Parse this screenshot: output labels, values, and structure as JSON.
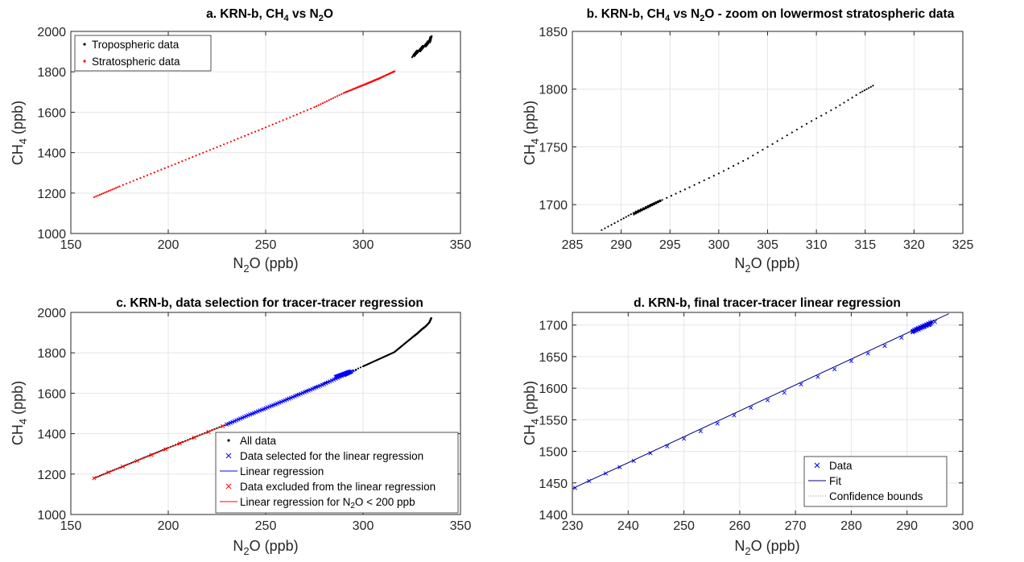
{
  "figure_title": "",
  "chart_data": [
    {
      "id": "a",
      "type": "scatter",
      "title": "a. KRN-b, CH4 vs N2O",
      "xlabel": "N2O (ppb)",
      "ylabel": "CH4 (ppb)",
      "xlim": [
        150,
        350
      ],
      "ylim": [
        1000,
        2000
      ],
      "xticks": [
        150,
        200,
        250,
        300,
        350
      ],
      "yticks": [
        1000,
        1200,
        1400,
        1600,
        1800,
        2000
      ],
      "grid": true,
      "legend_position": "top-left",
      "series": [
        {
          "name": "Tropospheric data",
          "marker": "dot",
          "color": "#000000",
          "kind": "trop",
          "x": [
            325.5,
            327,
            328.5,
            330,
            331.5,
            333,
            334,
            334.5,
            335
          ],
          "y": [
            1878,
            1892,
            1903,
            1915,
            1928,
            1940,
            1950,
            1960,
            1972
          ]
        },
        {
          "name": "Stratospheric data",
          "marker": "dot",
          "color": "#ff0000",
          "kind": "strat",
          "x": [
            162,
            175,
            200,
            225,
            250,
            275,
            290,
            300,
            308,
            316
          ],
          "y": [
            1180,
            1233,
            1330,
            1427,
            1525,
            1625,
            1695,
            1733,
            1765,
            1803
          ]
        }
      ]
    },
    {
      "id": "b",
      "type": "scatter",
      "title": "b. KRN-b, CH4 vs N2O - zoom on lowermost stratospheric data",
      "xlabel": "N2O (ppb)",
      "ylabel": "CH4 (ppb)",
      "xlim": [
        285,
        325
      ],
      "ylim": [
        1675,
        1850
      ],
      "xticks": [
        285,
        290,
        295,
        300,
        305,
        310,
        315,
        320,
        325
      ],
      "yticks": [
        1700,
        1750,
        1800,
        1850
      ],
      "grid": true,
      "series": [
        {
          "name": "",
          "marker": "dot",
          "color": "#000000",
          "kind": "strat",
          "x": [
            288,
            290,
            291.5,
            293,
            294.2,
            297,
            300,
            303,
            306,
            309,
            312,
            314.5,
            315.8
          ],
          "y": [
            1678,
            1687,
            1694,
            1700,
            1704,
            1715,
            1727,
            1740,
            1755,
            1770,
            1784,
            1797,
            1803
          ]
        }
      ]
    },
    {
      "id": "c",
      "type": "scatter",
      "title": "c. KRN-b, data selection for tracer-tracer regression",
      "xlabel": "N2O (ppb)",
      "ylabel": "CH4 (ppb)",
      "xlim": [
        150,
        350
      ],
      "ylim": [
        1000,
        2000
      ],
      "xticks": [
        150,
        200,
        250,
        300,
        350
      ],
      "yticks": [
        1000,
        1200,
        1400,
        1600,
        1800,
        2000
      ],
      "grid": true,
      "legend_position": "bottom-right",
      "legend": [
        {
          "label": "All data",
          "type": "dot",
          "color": "#000000"
        },
        {
          "label": "Data selected for the linear regression",
          "type": "cross",
          "color": "#0000ff"
        },
        {
          "label": "Linear regression",
          "type": "line",
          "color": "#0000ff"
        },
        {
          "label": "Data excluded from the linear regression",
          "type": "cross",
          "color": "#ff0000"
        },
        {
          "label": "Linear regression for N2O < 200 ppb",
          "type": "line",
          "color": "#ff0000"
        }
      ],
      "series": [
        {
          "name": "All data",
          "marker": "dot",
          "color": "#000000",
          "kind": "all",
          "x": [
            162,
            200,
            250,
            300,
            316,
            325.5,
            328,
            330,
            332,
            334,
            335
          ],
          "y": [
            1180,
            1330,
            1525,
            1733,
            1803,
            1878,
            1897,
            1915,
            1930,
            1950,
            1972
          ]
        },
        {
          "name": "Data selected for the linear regression",
          "marker": "cross",
          "color": "#0000ff",
          "kind": "selected",
          "x": [
            230,
            240,
            250,
            260,
            270,
            280,
            290,
            294
          ],
          "y": [
            1445,
            1487,
            1526,
            1565,
            1605,
            1645,
            1690,
            1708
          ]
        },
        {
          "name": "Linear regression",
          "marker": "line",
          "color": "#0000ff",
          "kind": "fit",
          "x": [
            230,
            297
          ],
          "y": [
            1445,
            1715
          ]
        },
        {
          "name": "Data excluded from the linear regression",
          "marker": "cross",
          "color": "#ff0000",
          "kind": "excluded",
          "x": [
            162,
            228
          ],
          "y": [
            1180,
            1437
          ]
        },
        {
          "name": "Linear regression for N2O < 200 ppb",
          "marker": "line",
          "color": "#ff0000",
          "kind": "fit",
          "x": [
            162,
            228
          ],
          "y": [
            1180,
            1437
          ]
        }
      ]
    },
    {
      "id": "d",
      "type": "scatter",
      "title": "d. KRN-b, final tracer-tracer linear regression",
      "xlabel": "N2O (ppb)",
      "ylabel": "CH4 (ppb)",
      "xlim": [
        230,
        300
      ],
      "ylim": [
        1400,
        1720
      ],
      "xticks": [
        230,
        240,
        250,
        260,
        270,
        280,
        290,
        300
      ],
      "yticks": [
        1400,
        1450,
        1500,
        1550,
        1600,
        1650,
        1700
      ],
      "grid": true,
      "legend_position": "bottom-right",
      "legend": [
        {
          "label": "Data",
          "type": "cross",
          "color": "#0000ff"
        },
        {
          "label": "Fit",
          "type": "line",
          "color": "#000080"
        },
        {
          "label": "Confidence bounds",
          "type": "dotted",
          "color": "#999999"
        }
      ],
      "series": [
        {
          "name": "Data",
          "marker": "cross",
          "color": "#0000ff",
          "kind": "data",
          "x": [
            230.5,
            233,
            236,
            238.5,
            241,
            244,
            247,
            250,
            253,
            256,
            259,
            262,
            265,
            268,
            271,
            274,
            277,
            280,
            283,
            286,
            289,
            291,
            292,
            293,
            294,
            295
          ],
          "y": [
            1442,
            1453,
            1465,
            1475,
            1485,
            1497,
            1508,
            1520,
            1532,
            1544,
            1557,
            1569,
            1581,
            1593,
            1606,
            1618,
            1630,
            1643,
            1655,
            1667,
            1680,
            1690,
            1694,
            1697,
            1700,
            1705
          ]
        },
        {
          "name": "Fit",
          "marker": "line",
          "color": "#000080",
          "kind": "fit",
          "x": [
            230,
            297.5
          ],
          "y": [
            1441,
            1718
          ]
        }
      ]
    }
  ]
}
